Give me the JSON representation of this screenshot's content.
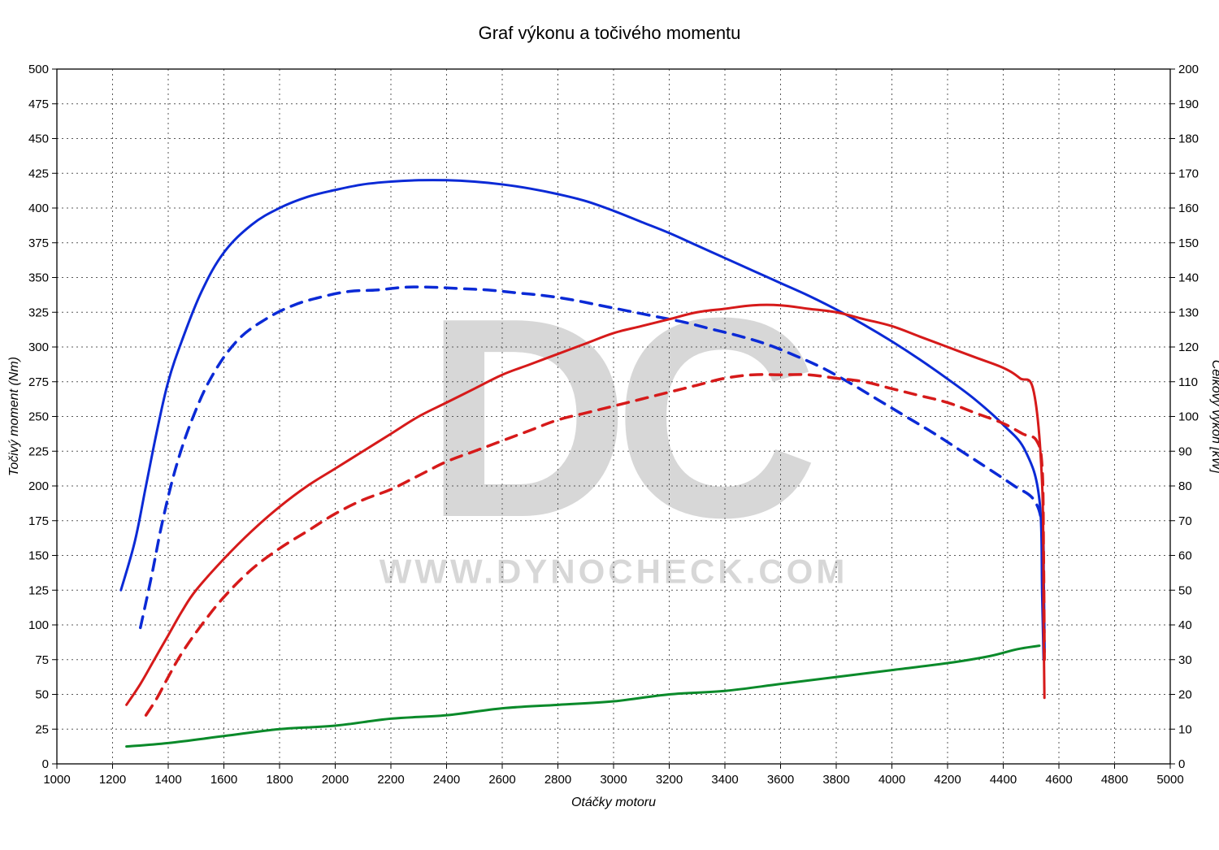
{
  "chart": {
    "type": "line",
    "title": "Graf výkonu a točivého momentu",
    "background_color": "#ffffff",
    "plot_background_color": "#ffffff",
    "grid_color": "#595959",
    "grid_dash": "2,4",
    "border_color": "#000000",
    "title_fontsize": 22,
    "title_color": "#000000",
    "axis_label_fontsize": 16,
    "tick_fontsize": 15,
    "line_width_solid": 3,
    "line_width_dashed": 3.5,
    "dash_pattern": "14,10",
    "watermark": {
      "big_text": "DC",
      "small_text": "WWW.DYNOCHECK.COM",
      "color": "#d7d7d7",
      "big_fontsize": 350,
      "small_fontsize": 42
    },
    "x_axis": {
      "label": "Otáčky motoru",
      "min": 1000,
      "max": 5000,
      "major_step": 200,
      "ticks": [
        1000,
        1200,
        1400,
        1600,
        1800,
        2000,
        2200,
        2400,
        2600,
        2800,
        3000,
        3200,
        3400,
        3600,
        3800,
        4000,
        4200,
        4400,
        4600,
        4800,
        5000
      ]
    },
    "y_left": {
      "label": "Točivý moment (Nm)",
      "min": 0,
      "max": 500,
      "major_step": 25,
      "ticks": [
        0,
        25,
        50,
        75,
        100,
        125,
        150,
        175,
        200,
        225,
        250,
        275,
        300,
        325,
        350,
        375,
        400,
        425,
        450,
        475,
        500
      ]
    },
    "y_right": {
      "label": "Celkový výkon [kW]",
      "min": 0,
      "max": 200,
      "major_step": 10,
      "ticks": [
        0,
        10,
        20,
        30,
        40,
        50,
        60,
        70,
        80,
        90,
        100,
        110,
        120,
        130,
        140,
        150,
        160,
        170,
        180,
        190,
        200
      ]
    },
    "series": [
      {
        "name": "torque_tuned",
        "axis": "left",
        "color": "#0b2ad6",
        "style": "solid",
        "data": [
          [
            1230,
            125
          ],
          [
            1280,
            160
          ],
          [
            1320,
            200
          ],
          [
            1360,
            240
          ],
          [
            1400,
            275
          ],
          [
            1450,
            305
          ],
          [
            1520,
            340
          ],
          [
            1600,
            368
          ],
          [
            1700,
            388
          ],
          [
            1800,
            400
          ],
          [
            1900,
            408
          ],
          [
            2000,
            413
          ],
          [
            2100,
            417
          ],
          [
            2200,
            419
          ],
          [
            2300,
            420
          ],
          [
            2400,
            420
          ],
          [
            2500,
            419
          ],
          [
            2600,
            417
          ],
          [
            2700,
            414
          ],
          [
            2800,
            410
          ],
          [
            2900,
            405
          ],
          [
            3000,
            398
          ],
          [
            3100,
            390
          ],
          [
            3200,
            382
          ],
          [
            3300,
            373
          ],
          [
            3400,
            364
          ],
          [
            3500,
            355
          ],
          [
            3600,
            346
          ],
          [
            3700,
            337
          ],
          [
            3800,
            327
          ],
          [
            3900,
            316
          ],
          [
            4000,
            304
          ],
          [
            4100,
            291
          ],
          [
            4200,
            277
          ],
          [
            4300,
            262
          ],
          [
            4400,
            244
          ],
          [
            4480,
            225
          ],
          [
            4530,
            190
          ],
          [
            4540,
            120
          ],
          [
            4545,
            75
          ]
        ]
      },
      {
        "name": "torque_stock",
        "axis": "left",
        "color": "#0b2ad6",
        "style": "dashed",
        "data": [
          [
            1300,
            98
          ],
          [
            1340,
            135
          ],
          [
            1380,
            175
          ],
          [
            1430,
            215
          ],
          [
            1490,
            250
          ],
          [
            1560,
            280
          ],
          [
            1650,
            305
          ],
          [
            1750,
            320
          ],
          [
            1850,
            330
          ],
          [
            1950,
            336
          ],
          [
            2050,
            340
          ],
          [
            2150,
            341
          ],
          [
            2250,
            343
          ],
          [
            2350,
            343
          ],
          [
            2450,
            342
          ],
          [
            2550,
            341
          ],
          [
            2650,
            339
          ],
          [
            2750,
            337
          ],
          [
            2850,
            334
          ],
          [
            2950,
            330
          ],
          [
            3050,
            326
          ],
          [
            3150,
            322
          ],
          [
            3250,
            318
          ],
          [
            3350,
            313
          ],
          [
            3450,
            308
          ],
          [
            3550,
            302
          ],
          [
            3650,
            294
          ],
          [
            3750,
            285
          ],
          [
            3850,
            274
          ],
          [
            3950,
            262
          ],
          [
            4050,
            250
          ],
          [
            4150,
            238
          ],
          [
            4250,
            225
          ],
          [
            4350,
            212
          ],
          [
            4440,
            200
          ],
          [
            4510,
            190
          ],
          [
            4540,
            170
          ],
          [
            4545,
            130
          ],
          [
            4548,
            78
          ]
        ]
      },
      {
        "name": "power_tuned",
        "axis": "right",
        "color": "#d61a1a",
        "style": "solid",
        "data": [
          [
            1250,
            17
          ],
          [
            1300,
            23
          ],
          [
            1350,
            30
          ],
          [
            1400,
            37
          ],
          [
            1450,
            44
          ],
          [
            1500,
            50
          ],
          [
            1600,
            59
          ],
          [
            1700,
            67
          ],
          [
            1800,
            74
          ],
          [
            1900,
            80
          ],
          [
            2000,
            85
          ],
          [
            2100,
            90
          ],
          [
            2200,
            95
          ],
          [
            2300,
            100
          ],
          [
            2400,
            104
          ],
          [
            2500,
            108
          ],
          [
            2600,
            112
          ],
          [
            2700,
            115
          ],
          [
            2800,
            118
          ],
          [
            2900,
            121
          ],
          [
            3000,
            124
          ],
          [
            3100,
            126
          ],
          [
            3200,
            128
          ],
          [
            3300,
            130
          ],
          [
            3400,
            131
          ],
          [
            3500,
            132
          ],
          [
            3600,
            132
          ],
          [
            3700,
            131
          ],
          [
            3800,
            130
          ],
          [
            3900,
            128
          ],
          [
            4000,
            126
          ],
          [
            4100,
            123
          ],
          [
            4200,
            120
          ],
          [
            4300,
            117
          ],
          [
            4400,
            114
          ],
          [
            4460,
            111
          ],
          [
            4510,
            107
          ],
          [
            4540,
            80
          ],
          [
            4545,
            40
          ],
          [
            4548,
            19
          ]
        ]
      },
      {
        "name": "power_stock",
        "axis": "right",
        "color": "#d61a1a",
        "style": "dashed",
        "data": [
          [
            1320,
            14
          ],
          [
            1360,
            19
          ],
          [
            1400,
            25
          ],
          [
            1450,
            32
          ],
          [
            1520,
            40
          ],
          [
            1600,
            48
          ],
          [
            1700,
            56
          ],
          [
            1800,
            62
          ],
          [
            1900,
            67
          ],
          [
            2000,
            72
          ],
          [
            2100,
            76
          ],
          [
            2200,
            79
          ],
          [
            2300,
            83
          ],
          [
            2400,
            87
          ],
          [
            2500,
            90
          ],
          [
            2600,
            93
          ],
          [
            2700,
            96
          ],
          [
            2800,
            99
          ],
          [
            2900,
            101
          ],
          [
            3000,
            103
          ],
          [
            3100,
            105
          ],
          [
            3200,
            107
          ],
          [
            3300,
            109
          ],
          [
            3400,
            111
          ],
          [
            3500,
            112
          ],
          [
            3600,
            112
          ],
          [
            3700,
            112
          ],
          [
            3800,
            111
          ],
          [
            3900,
            110
          ],
          [
            4000,
            108
          ],
          [
            4100,
            106
          ],
          [
            4200,
            104
          ],
          [
            4300,
            101
          ],
          [
            4400,
            98
          ],
          [
            4470,
            95
          ],
          [
            4520,
            93
          ],
          [
            4540,
            85
          ],
          [
            4545,
            60
          ],
          [
            4548,
            30
          ]
        ]
      },
      {
        "name": "loss_power",
        "axis": "right",
        "color": "#0a8a2a",
        "style": "solid",
        "data": [
          [
            1250,
            5
          ],
          [
            1400,
            6
          ],
          [
            1600,
            8
          ],
          [
            1800,
            10
          ],
          [
            2000,
            11
          ],
          [
            2200,
            13
          ],
          [
            2400,
            14
          ],
          [
            2600,
            16
          ],
          [
            2800,
            17
          ],
          [
            3000,
            18
          ],
          [
            3200,
            20
          ],
          [
            3400,
            21
          ],
          [
            3600,
            23
          ],
          [
            3800,
            25
          ],
          [
            4000,
            27
          ],
          [
            4200,
            29
          ],
          [
            4350,
            31
          ],
          [
            4450,
            33
          ],
          [
            4530,
            34
          ]
        ]
      }
    ]
  }
}
